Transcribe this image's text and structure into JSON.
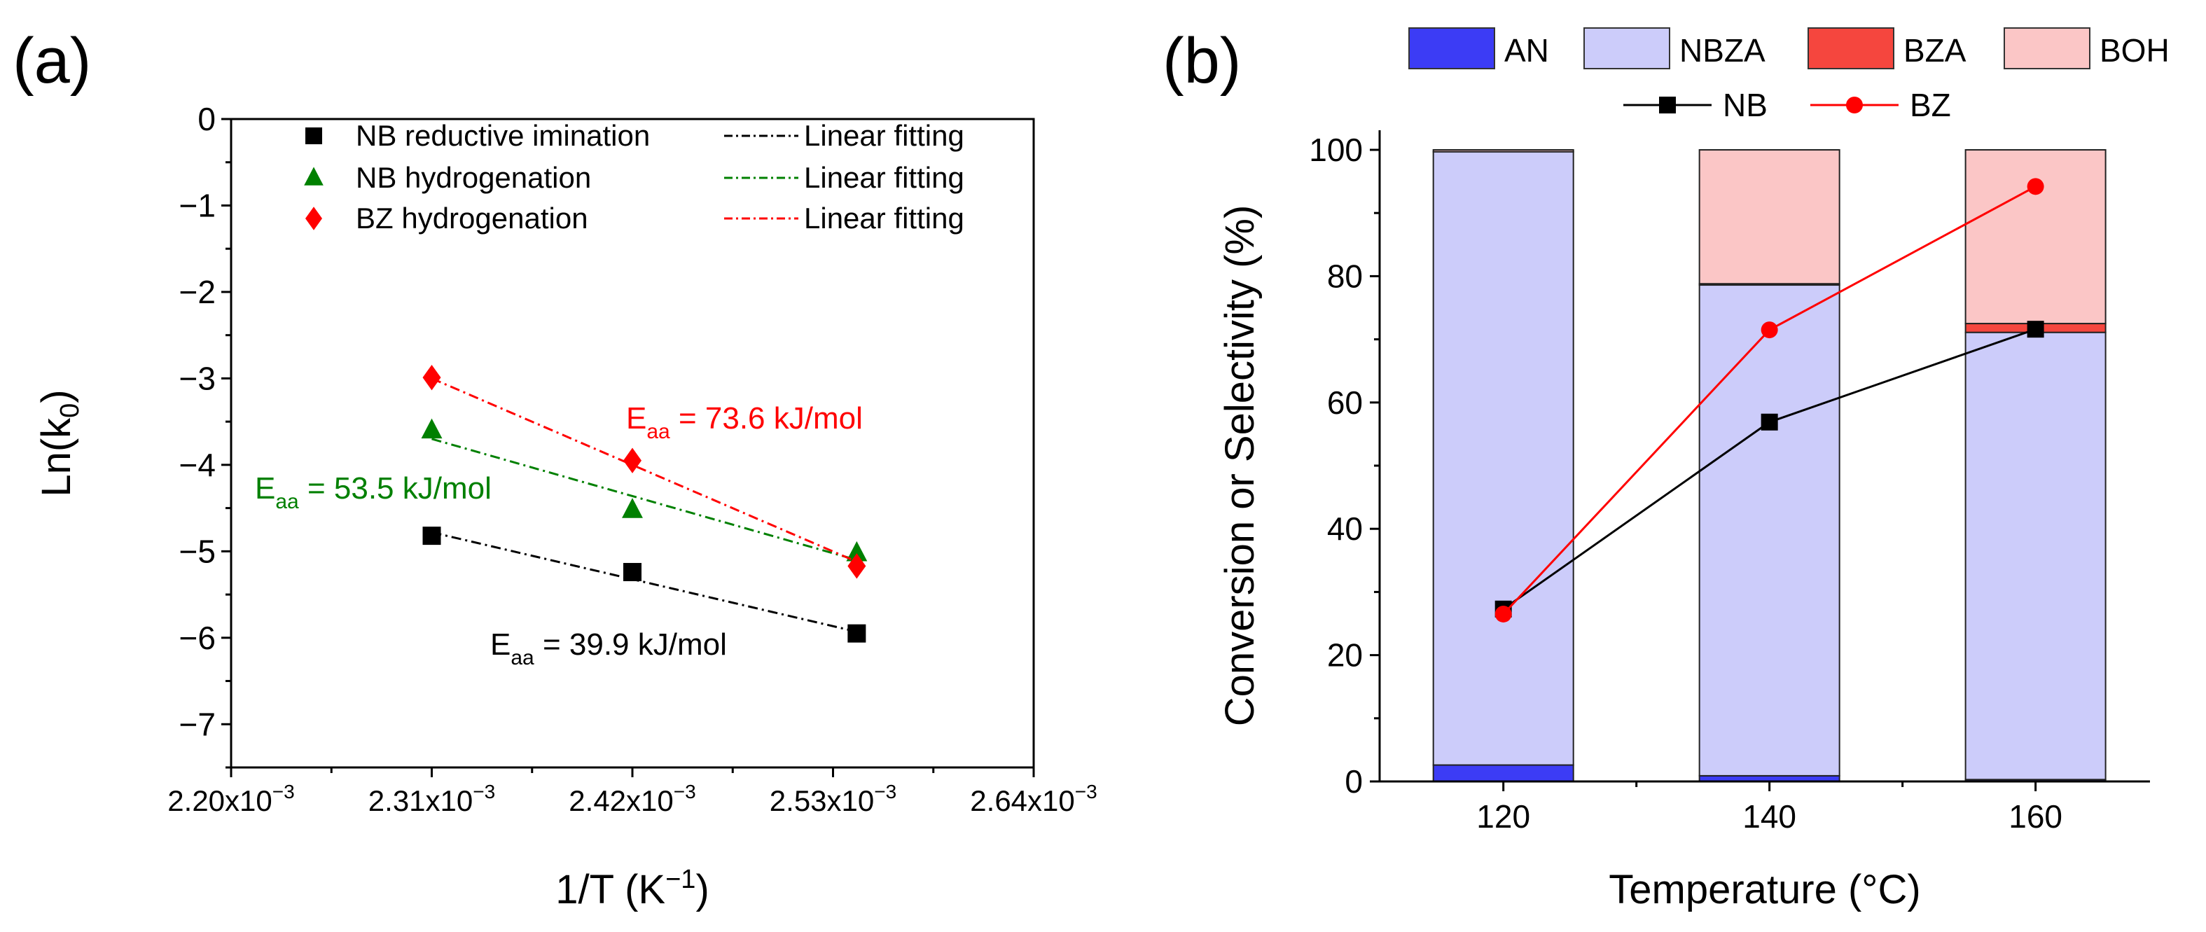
{
  "chart_data": [
    {
      "panel_label": "(a)",
      "type": "scatter",
      "xlabel": {
        "base": "1/T (K",
        "exp": "−1",
        "tail": ")"
      },
      "ylabel": {
        "base": "Ln(k",
        "sub": "0",
        "tail": ")"
      },
      "xlim": [
        0.0022,
        0.00264
      ],
      "ylim": [
        -7.5,
        0
      ],
      "x_ticks": [
        0.0022,
        0.00231,
        0.00242,
        0.00253,
        0.00264
      ],
      "x_tick_labels": [
        {
          "base": "2.20x10",
          "exp": "−3"
        },
        {
          "base": "2.31x10",
          "exp": "−3"
        },
        {
          "base": "2.42x10",
          "exp": "−3"
        },
        {
          "base": "2.53x10",
          "exp": "−3"
        },
        {
          "base": "2.64x10",
          "exp": "−3"
        }
      ],
      "y_ticks": [
        0,
        -1,
        -2,
        -3,
        -4,
        -5,
        -6,
        -7
      ],
      "y_tick_labels": [
        "0",
        "−1",
        "−2",
        "−3",
        "−4",
        "−5",
        "−6",
        "−7"
      ],
      "grid": false,
      "legend_position": "top",
      "series": [
        {
          "name": "NB reductive imination",
          "marker": "square",
          "color": "#000000",
          "x": [
            0.00231,
            0.00242,
            0.002543
          ],
          "y": [
            -4.82,
            -5.24,
            -5.95
          ],
          "fit_name": "Linear fitting",
          "fit": {
            "x": [
              0.00231,
              0.002543
            ],
            "y": [
              -4.78,
              -5.93
            ]
          },
          "annotation": {
            "E": "E",
            "sub": "aa",
            "text": " = 39.9 kJ/mol"
          }
        },
        {
          "name": "NB hydrogenation",
          "marker": "triangle",
          "color": "#008000",
          "x": [
            0.00231,
            0.00242,
            0.002543
          ],
          "y": [
            -3.6,
            -4.52,
            -5.02
          ],
          "fit_name": "Linear fitting",
          "fit": {
            "x": [
              0.00231,
              0.002543
            ],
            "y": [
              -3.7,
              -5.1
            ]
          },
          "annotation": {
            "E": "E",
            "sub": "aa",
            "text": " = 53.5 kJ/mol"
          }
        },
        {
          "name": "BZ hydrogenation",
          "marker": "diamond",
          "color": "#ff0000",
          "x": [
            0.00231,
            0.00242,
            0.002543
          ],
          "y": [
            -2.99,
            -3.95,
            -5.17
          ],
          "fit_name": "Linear fitting",
          "fit": {
            "x": [
              0.00231,
              0.002543
            ],
            "y": [
              -3.0,
              -5.12
            ]
          },
          "annotation": {
            "E": "E",
            "sub": "aa",
            "text": " = 73.6 kJ/mol"
          }
        }
      ]
    },
    {
      "panel_label": "(b)",
      "type": "bar",
      "stacked": true,
      "xlabel": "Temperature (°C)",
      "ylabel": "Conversion or Selectivity (%)",
      "categories": [
        "120",
        "140",
        "160"
      ],
      "xlim": [
        110.7,
        168.6
      ],
      "ylim": [
        0,
        100
      ],
      "y_ticks": [
        0,
        20,
        40,
        60,
        80,
        100
      ],
      "y_tick_labels": [
        "0",
        "20",
        "40",
        "60",
        "80",
        "100"
      ],
      "grid": false,
      "legend_position": "top",
      "bar_series": [
        {
          "name": "AN",
          "color": "#3c3cf5",
          "values": [
            2.6,
            0.9,
            0.3
          ]
        },
        {
          "name": "NBZA",
          "color": "#ccccfa",
          "values": [
            97.1,
            77.7,
            70.8
          ]
        },
        {
          "name": "BZA",
          "color": "#f5463e",
          "values": [
            0.0,
            0.2,
            1.4
          ]
        },
        {
          "name": "BOH",
          "color": "#fbc6c6",
          "values": [
            0.3,
            21.2,
            27.5
          ]
        }
      ],
      "line_series": [
        {
          "name": "NB",
          "color": "#000000",
          "marker": "square",
          "values": [
            27.3,
            56.9,
            71.6
          ]
        },
        {
          "name": "BZ",
          "color": "#ff0000",
          "marker": "circle",
          "values": [
            26.5,
            71.5,
            94.2
          ]
        }
      ]
    }
  ]
}
